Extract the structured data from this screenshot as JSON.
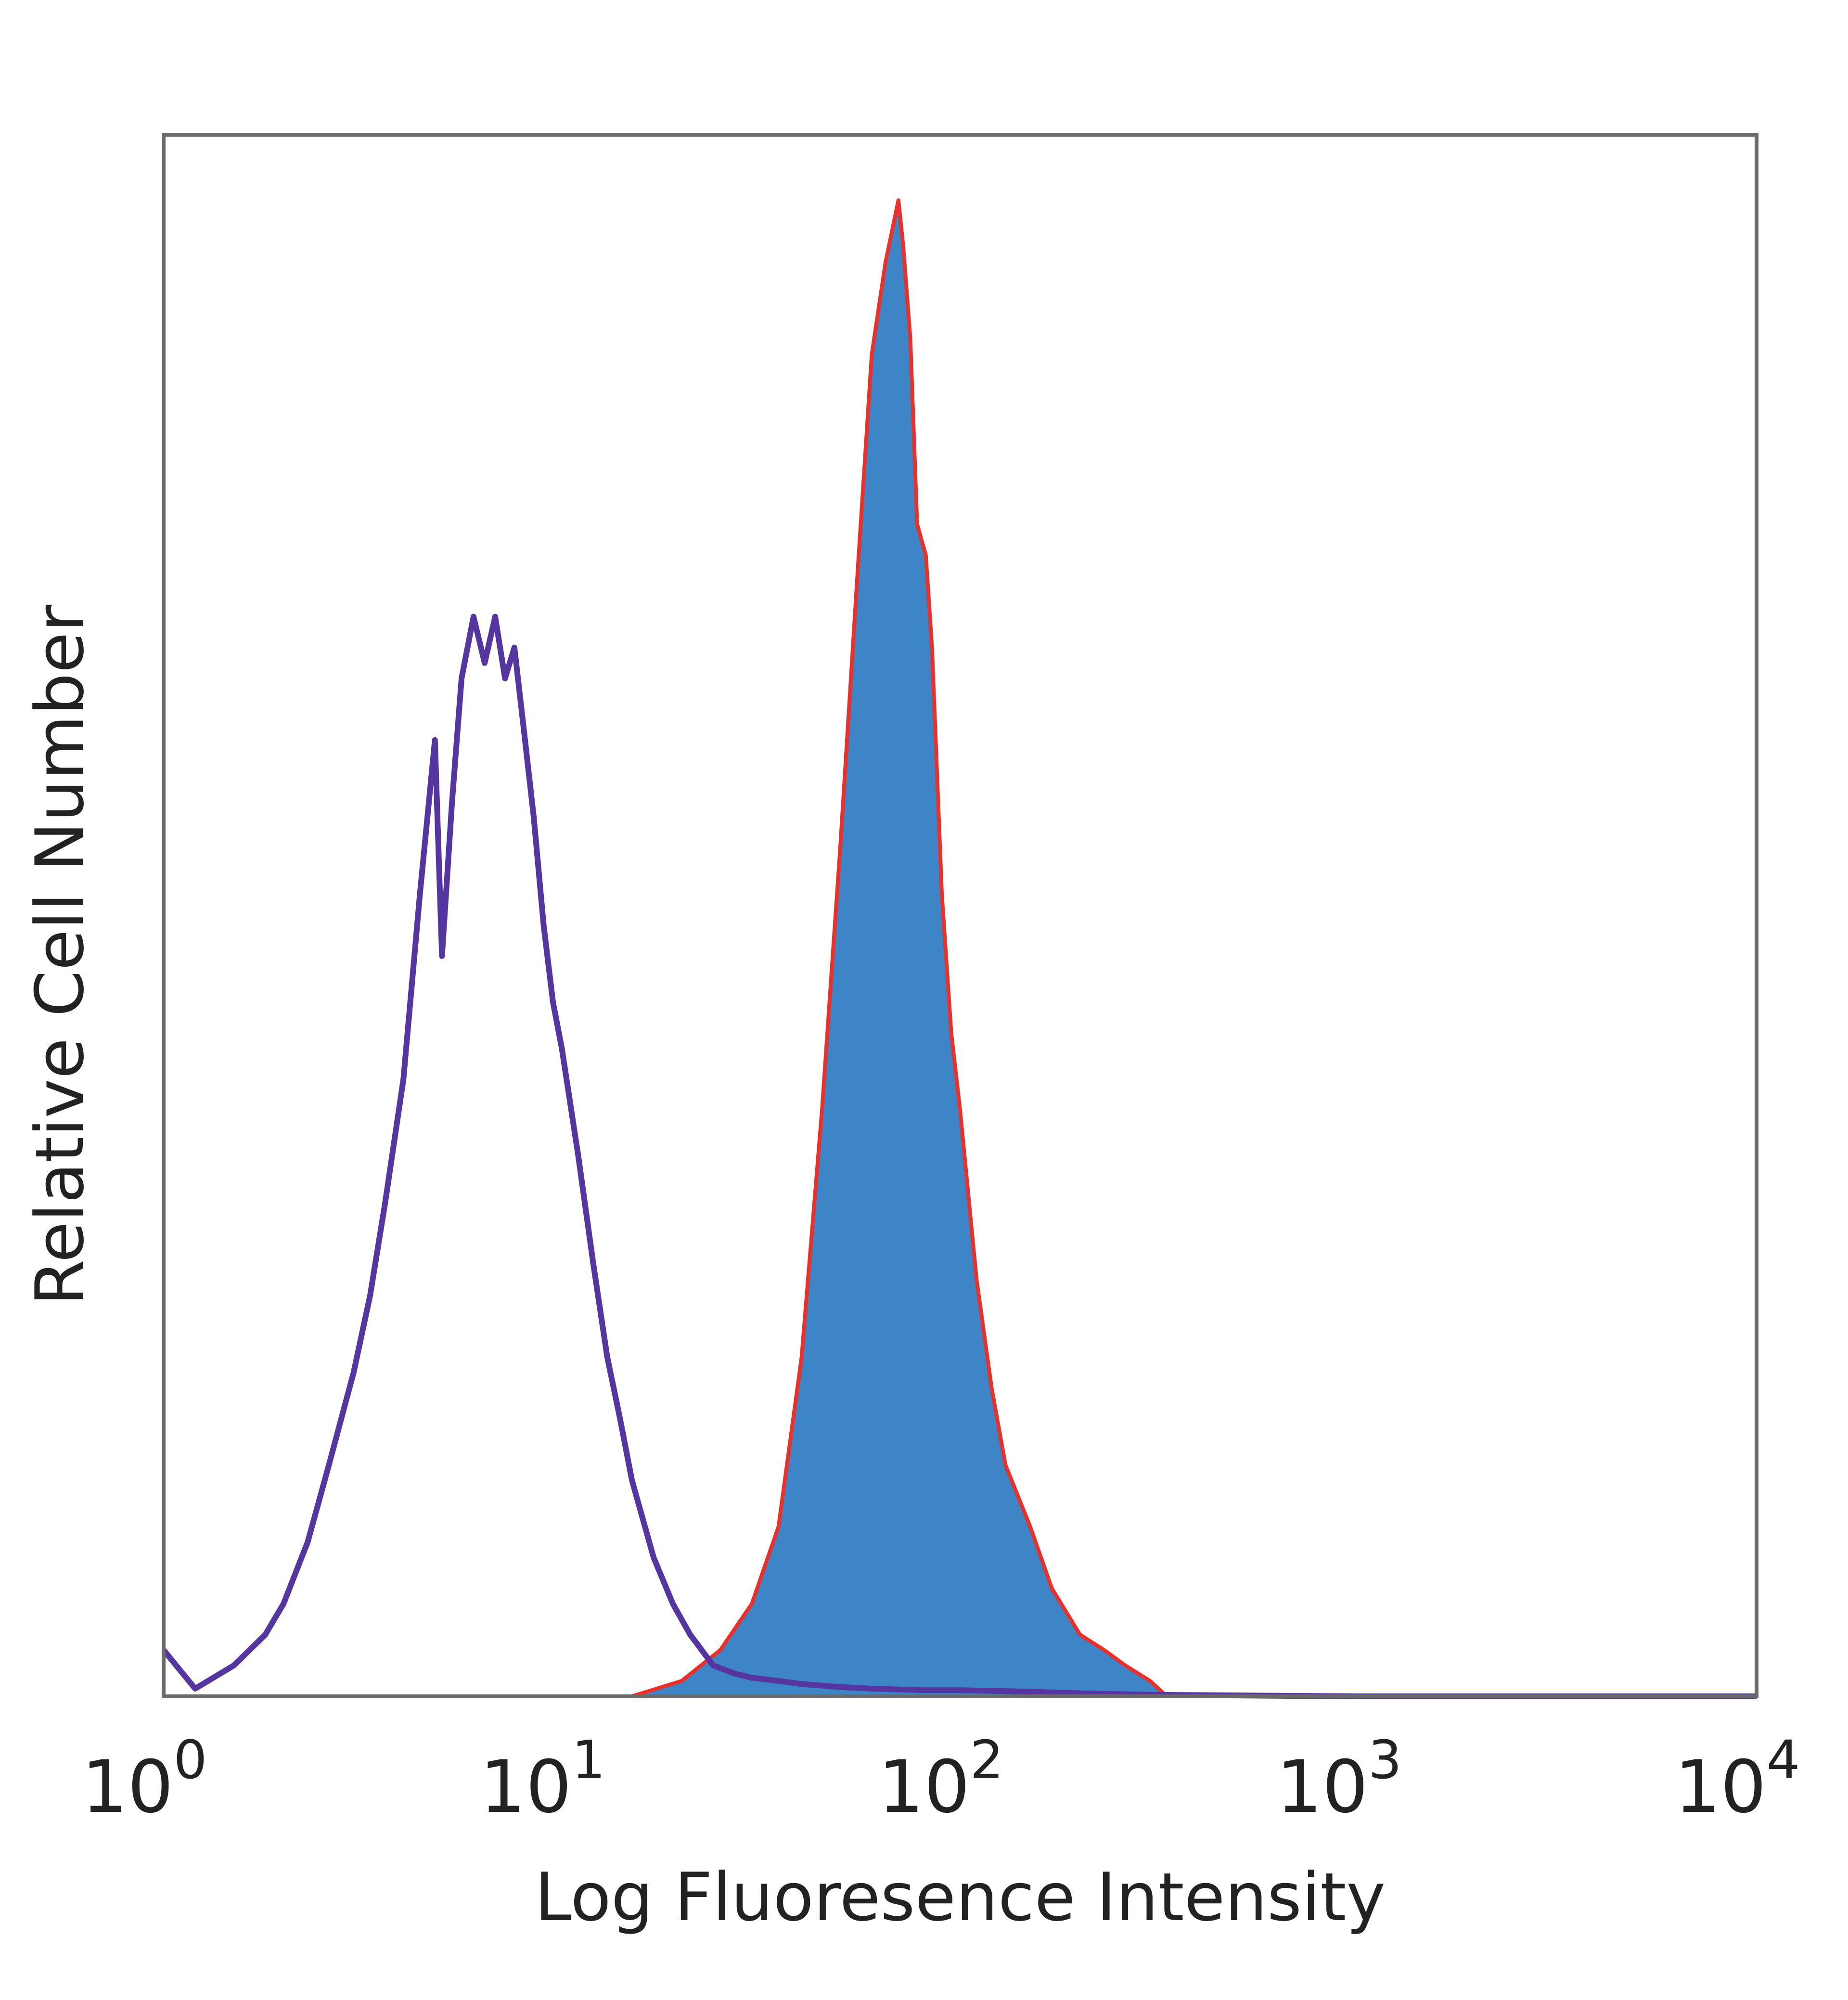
{
  "chart_data": {
    "type": "area",
    "xscale": "log",
    "xlim": [
      1,
      10000
    ],
    "ylim": [
      0,
      1
    ],
    "xlabel": "Log Fluoresence Intensity",
    "ylabel": "Relative Cell Number",
    "grid": false,
    "legend": "none",
    "x_ticks": [
      {
        "base": "10",
        "exp": "0",
        "value": 1
      },
      {
        "base": "10",
        "exp": "1",
        "value": 10
      },
      {
        "base": "10",
        "exp": "2",
        "value": 100
      },
      {
        "base": "10",
        "exp": "3",
        "value": 1000
      },
      {
        "base": "10",
        "exp": "4",
        "value": 10000
      }
    ],
    "series": [
      {
        "style": "filled",
        "fill": "#3d85c6",
        "outline": "#e8312a",
        "x": [
          15,
          20,
          25,
          30,
          35,
          40,
          45,
          50,
          55,
          60,
          65,
          70,
          72,
          75,
          78,
          82,
          85,
          90,
          95,
          100,
          110,
          120,
          130,
          150,
          170,
          200,
          230,
          260,
          300,
          330
        ],
        "y": [
          0.0,
          0.01,
          0.03,
          0.06,
          0.11,
          0.22,
          0.38,
          0.55,
          0.72,
          0.87,
          0.93,
          0.97,
          0.94,
          0.88,
          0.76,
          0.74,
          0.68,
          0.52,
          0.43,
          0.38,
          0.27,
          0.2,
          0.15,
          0.11,
          0.07,
          0.04,
          0.03,
          0.02,
          0.01,
          0.0
        ]
      },
      {
        "style": "line",
        "stroke": "#5535a0",
        "x": [
          1,
          1.2,
          1.5,
          1.8,
          2.0,
          2.3,
          2.6,
          3.0,
          3.3,
          3.6,
          4.0,
          4.4,
          4.8,
          5.0,
          5.3,
          5.6,
          6.0,
          6.4,
          6.8,
          7.2,
          7.6,
          8.0,
          8.5,
          9.0,
          9.5,
          10,
          11,
          12,
          13,
          14,
          15,
          17,
          19,
          21,
          24,
          27,
          30,
          35,
          40,
          50,
          60,
          80,
          100,
          150,
          200,
          300,
          1000,
          10000
        ],
        "y": [
          0.03,
          0.005,
          0.02,
          0.04,
          0.06,
          0.1,
          0.15,
          0.21,
          0.26,
          0.32,
          0.4,
          0.52,
          0.62,
          0.48,
          0.58,
          0.66,
          0.7,
          0.67,
          0.7,
          0.66,
          0.68,
          0.63,
          0.57,
          0.5,
          0.45,
          0.42,
          0.35,
          0.28,
          0.22,
          0.18,
          0.14,
          0.09,
          0.06,
          0.04,
          0.02,
          0.015,
          0.012,
          0.01,
          0.008,
          0.006,
          0.005,
          0.004,
          0.004,
          0.003,
          0.002,
          0.001,
          0.0,
          0.0
        ]
      }
    ]
  }
}
